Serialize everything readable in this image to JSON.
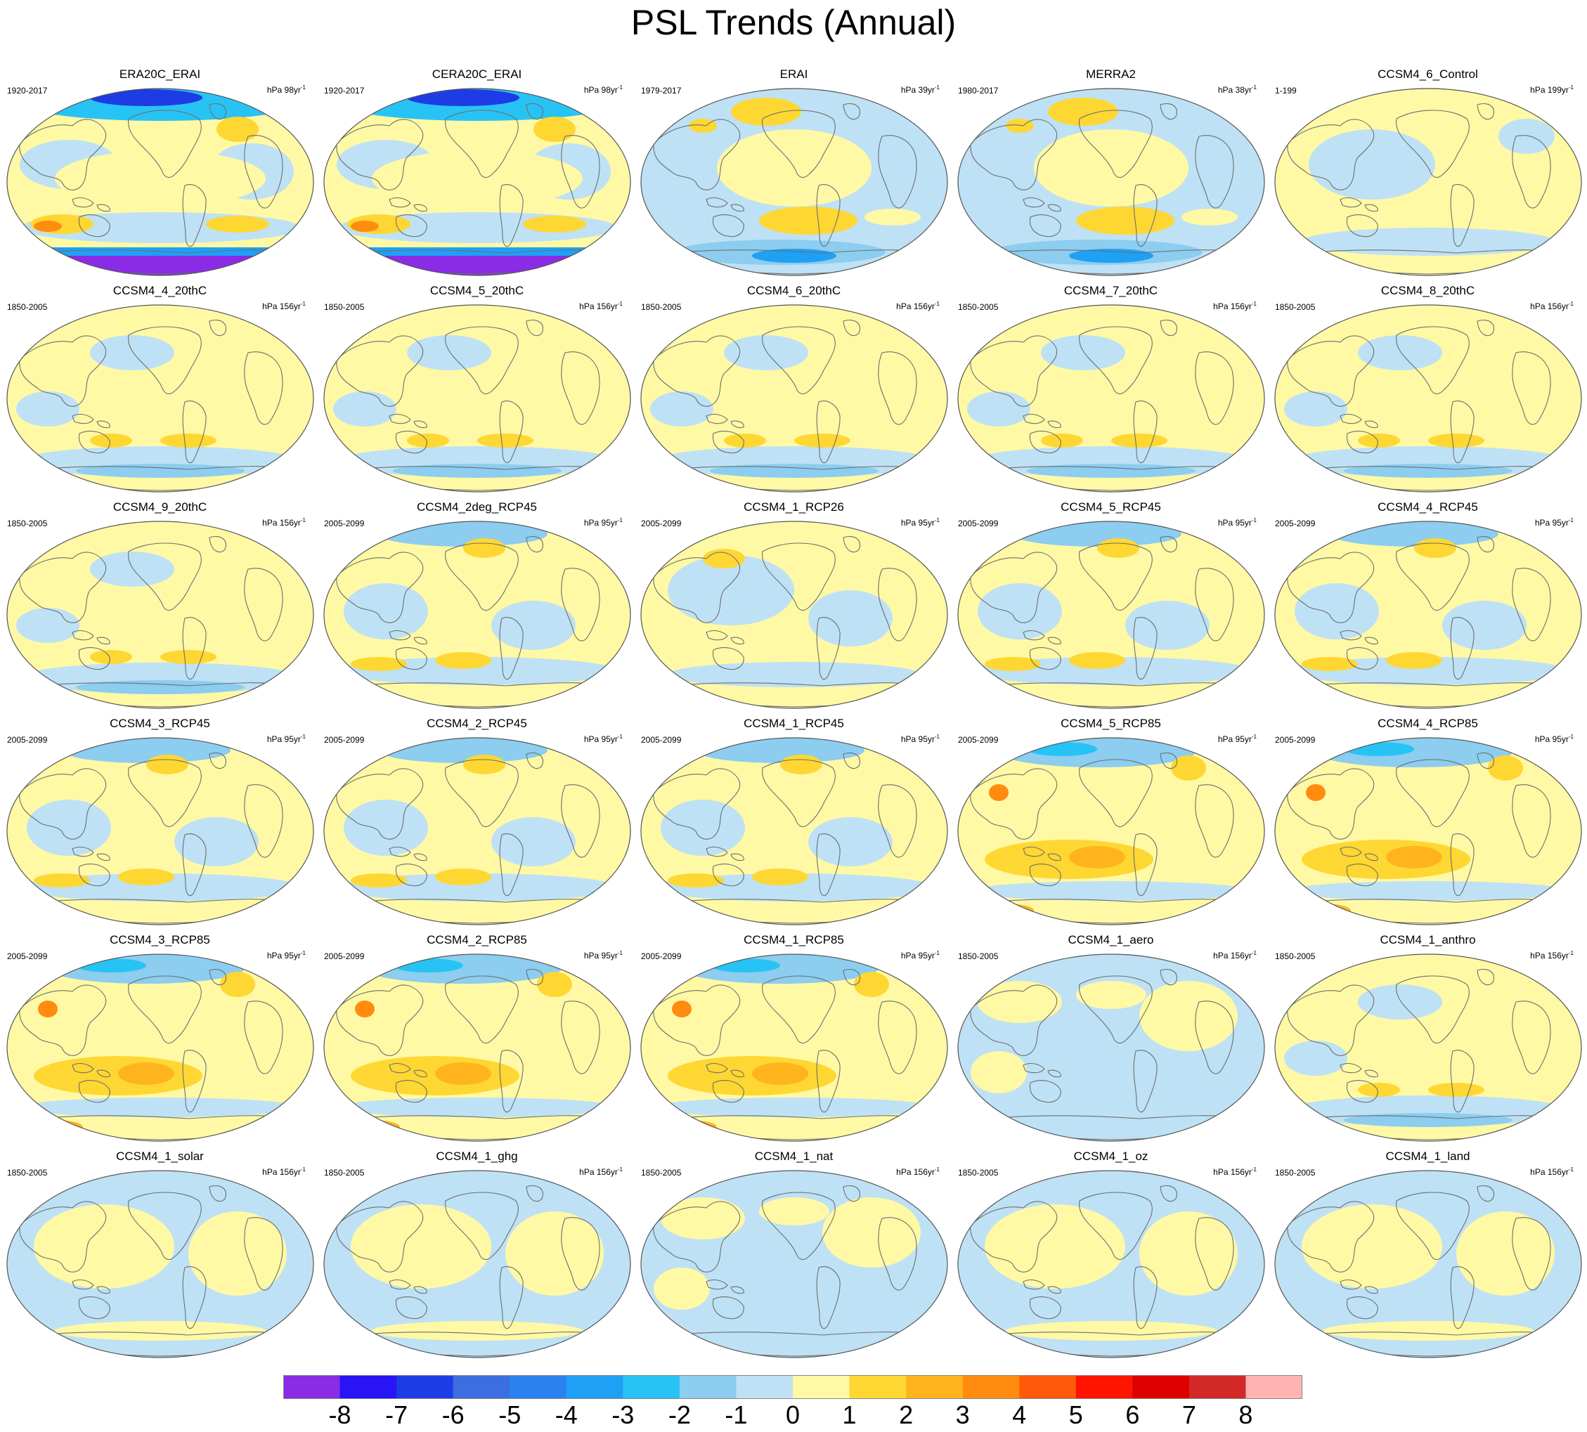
{
  "title": "PSL Trends (Annual)",
  "panels": [
    {
      "name": "ERA20C_ERAI",
      "years": "1920-2017",
      "units_prefix": "hPa 98yr",
      "units_exp": "-1",
      "pattern": "era20c"
    },
    {
      "name": "CERA20C_ERAI",
      "years": "1920-2017",
      "units_prefix": "hPa 98yr",
      "units_exp": "-1",
      "pattern": "era20c"
    },
    {
      "name": "ERAI",
      "years": "1979-2017",
      "units_prefix": "hPa 39yr",
      "units_exp": "-1",
      "pattern": "reanal"
    },
    {
      "name": "MERRA2",
      "years": "1980-2017",
      "units_prefix": "hPa 38yr",
      "units_exp": "-1",
      "pattern": "reanal"
    },
    {
      "name": "CCSM4_6_Control",
      "years": "1-199",
      "units_prefix": "hPa 199yr",
      "units_exp": "-1",
      "pattern": "control"
    },
    {
      "name": "CCSM4_4_20thC",
      "years": "1850-2005",
      "units_prefix": "hPa 156yr",
      "units_exp": "-1",
      "pattern": "hist"
    },
    {
      "name": "CCSM4_5_20thC",
      "years": "1850-2005",
      "units_prefix": "hPa 156yr",
      "units_exp": "-1",
      "pattern": "hist"
    },
    {
      "name": "CCSM4_6_20thC",
      "years": "1850-2005",
      "units_prefix": "hPa 156yr",
      "units_exp": "-1",
      "pattern": "hist"
    },
    {
      "name": "CCSM4_7_20thC",
      "years": "1850-2005",
      "units_prefix": "hPa 156yr",
      "units_exp": "-1",
      "pattern": "hist"
    },
    {
      "name": "CCSM4_8_20thC",
      "years": "1850-2005",
      "units_prefix": "hPa 156yr",
      "units_exp": "-1",
      "pattern": "hist"
    },
    {
      "name": "CCSM4_9_20thC",
      "years": "1850-2005",
      "units_prefix": "hPa 156yr",
      "units_exp": "-1",
      "pattern": "hist"
    },
    {
      "name": "CCSM4_2deg_RCP45",
      "years": "2005-2099",
      "units_prefix": "hPa 95yr",
      "units_exp": "-1",
      "pattern": "rcp45"
    },
    {
      "name": "CCSM4_1_RCP26",
      "years": "2005-2099",
      "units_prefix": "hPa 95yr",
      "units_exp": "-1",
      "pattern": "rcp26"
    },
    {
      "name": "CCSM4_5_RCP45",
      "years": "2005-2099",
      "units_prefix": "hPa 95yr",
      "units_exp": "-1",
      "pattern": "rcp45"
    },
    {
      "name": "CCSM4_4_RCP45",
      "years": "2005-2099",
      "units_prefix": "hPa 95yr",
      "units_exp": "-1",
      "pattern": "rcp45"
    },
    {
      "name": "CCSM4_3_RCP45",
      "years": "2005-2099",
      "units_prefix": "hPa 95yr",
      "units_exp": "-1",
      "pattern": "rcp45"
    },
    {
      "name": "CCSM4_2_RCP45",
      "years": "2005-2099",
      "units_prefix": "hPa 95yr",
      "units_exp": "-1",
      "pattern": "rcp45"
    },
    {
      "name": "CCSM4_1_RCP45",
      "years": "2005-2099",
      "units_prefix": "hPa 95yr",
      "units_exp": "-1",
      "pattern": "rcp45"
    },
    {
      "name": "CCSM4_5_RCP85",
      "years": "2005-2099",
      "units_prefix": "hPa 95yr",
      "units_exp": "-1",
      "pattern": "rcp85"
    },
    {
      "name": "CCSM4_4_RCP85",
      "years": "2005-2099",
      "units_prefix": "hPa 95yr",
      "units_exp": "-1",
      "pattern": "rcp85"
    },
    {
      "name": "CCSM4_3_RCP85",
      "years": "2005-2099",
      "units_prefix": "hPa 95yr",
      "units_exp": "-1",
      "pattern": "rcp85"
    },
    {
      "name": "CCSM4_2_RCP85",
      "years": "2005-2099",
      "units_prefix": "hPa 95yr",
      "units_exp": "-1",
      "pattern": "rcp85"
    },
    {
      "name": "CCSM4_1_RCP85",
      "years": "2005-2099",
      "units_prefix": "hPa 95yr",
      "units_exp": "-1",
      "pattern": "rcp85"
    },
    {
      "name": "CCSM4_1_aero",
      "years": "1850-2005",
      "units_prefix": "hPa 156yr",
      "units_exp": "-1",
      "pattern": "aero"
    },
    {
      "name": "CCSM4_1_anthro",
      "years": "1850-2005",
      "units_prefix": "hPa 156yr",
      "units_exp": "-1",
      "pattern": "hist"
    },
    {
      "name": "CCSM4_1_solar",
      "years": "1850-2005",
      "units_prefix": "hPa 156yr",
      "units_exp": "-1",
      "pattern": "weak"
    },
    {
      "name": "CCSM4_1_ghg",
      "years": "1850-2005",
      "units_prefix": "hPa 156yr",
      "units_exp": "-1",
      "pattern": "weak"
    },
    {
      "name": "CCSM4_1_nat",
      "years": "1850-2005",
      "units_prefix": "hPa 156yr",
      "units_exp": "-1",
      "pattern": "aero"
    },
    {
      "name": "CCSM4_1_oz",
      "years": "1850-2005",
      "units_prefix": "hPa 156yr",
      "units_exp": "-1",
      "pattern": "weak"
    },
    {
      "name": "CCSM4_1_land",
      "years": "1850-2005",
      "units_prefix": "hPa 156yr",
      "units_exp": "-1",
      "pattern": "weak"
    }
  ],
  "colorbar": {
    "labels": [
      "-8",
      "-7",
      "-6",
      "-5",
      "-4",
      "-3",
      "-2",
      "-1",
      "0",
      "1",
      "2",
      "3",
      "4",
      "5",
      "6",
      "7",
      "8"
    ],
    "colors": [
      "#8a2be6",
      "#2814f5",
      "#1e3ce6",
      "#3c6ee0",
      "#2a82f0",
      "#1ea0f5",
      "#28c3f5",
      "#8ccdf0",
      "#bee1f5",
      "#fff9a5",
      "#ffd732",
      "#ffb41e",
      "#ff8c0f",
      "#ff5a0a",
      "#ff1400",
      "#dc0000",
      "#d22828",
      "#ffb4b4"
    ]
  },
  "map_colors": {
    "ocean_neg1": "#bee1f5",
    "pos1": "#fff9a5",
    "pos2": "#ffd732",
    "pos3": "#ffb41e",
    "pos4": "#ff8c0f",
    "neg2": "#8ccdf0",
    "neg3": "#28c3f5",
    "neg4": "#1ea0f5",
    "neg6": "#1e3ce6",
    "neg8": "#8a2be6",
    "coast": "#6e6e6e"
  }
}
